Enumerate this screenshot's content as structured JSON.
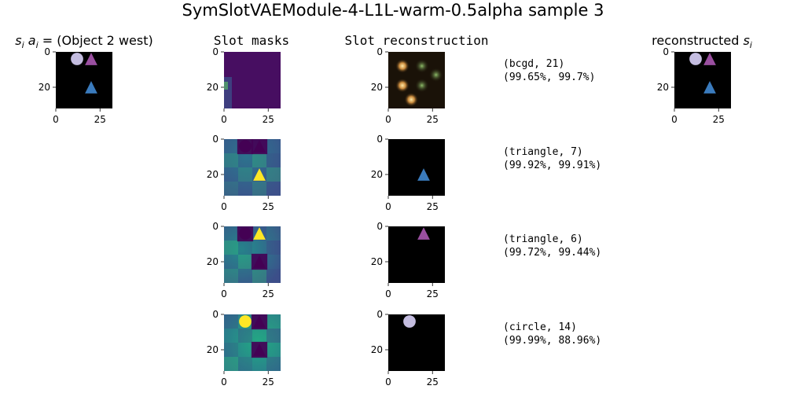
{
  "figure": {
    "title": "SymSlotVAEModule-4-L1L-warm-0.5alpha sample 3",
    "col_labels": {
      "input_prefix": "s",
      "input_sub": "i",
      "input_mid": "a",
      "input_sub2": "i",
      "input_suffix": " =  (Object 2 west)",
      "masks": "Slot masks",
      "recon": "Slot reconstruction",
      "output_prefix": "reconstructed ",
      "output_var": "s",
      "output_sub": "i"
    },
    "slot_annotations": [
      {
        "line1": "(bcgd, 21)",
        "line2": "(99.65%, 99.7%)"
      },
      {
        "line1": "(triangle, 7)",
        "line2": "(99.92%, 99.91%)"
      },
      {
        "line1": "(triangle, 6)",
        "line2": "(99.72%, 99.44%)"
      },
      {
        "line1": "(circle, 14)",
        "line2": "(99.99%, 88.96%)"
      }
    ],
    "colors": {
      "viridis_dark": "#440154",
      "viridis_yellow": "#fde725",
      "triangle_purple": "#9a4fa0",
      "triangle_blue": "#3a7bbd",
      "circle_lavender": "#c4bde0",
      "black": "#000000"
    }
  },
  "chart_data": {
    "type": "image-grid",
    "rows": 4,
    "image_size": 32,
    "axis": {
      "xticks": [
        0,
        25
      ],
      "yticks": [
        0,
        20
      ],
      "xlim": [
        0,
        32
      ],
      "ylim": [
        32,
        0
      ]
    },
    "panels": [
      {
        "id": "input",
        "row": 0,
        "kind": "scene"
      },
      {
        "id": "mask-0",
        "row": 0,
        "kind": "mask-background"
      },
      {
        "id": "recon-0",
        "row": 0,
        "kind": "recon-background"
      },
      {
        "id": "output",
        "row": 0,
        "kind": "scene"
      },
      {
        "id": "mask-1",
        "row": 1,
        "kind": "mask-objects",
        "highlight": "blue-triangle"
      },
      {
        "id": "recon-1",
        "row": 1,
        "kind": "recon-object",
        "object": "blue-triangle"
      },
      {
        "id": "mask-2",
        "row": 2,
        "kind": "mask-objects",
        "highlight": "purple-triangle"
      },
      {
        "id": "recon-2",
        "row": 2,
        "kind": "recon-object",
        "object": "purple-triangle"
      },
      {
        "id": "mask-3",
        "row": 3,
        "kind": "mask-objects",
        "highlight": "circle"
      },
      {
        "id": "recon-3",
        "row": 3,
        "kind": "recon-object",
        "object": "circle"
      }
    ],
    "objects": [
      {
        "name": "circle",
        "shape": "circle",
        "x": 12,
        "y": 4,
        "color": "#c4bde0"
      },
      {
        "name": "purple-triangle",
        "shape": "triangle",
        "x": 20,
        "y": 4,
        "color": "#9a4fa0"
      },
      {
        "name": "blue-triangle",
        "shape": "triangle",
        "x": 20,
        "y": 20,
        "color": "#3a7bbd"
      }
    ]
  }
}
